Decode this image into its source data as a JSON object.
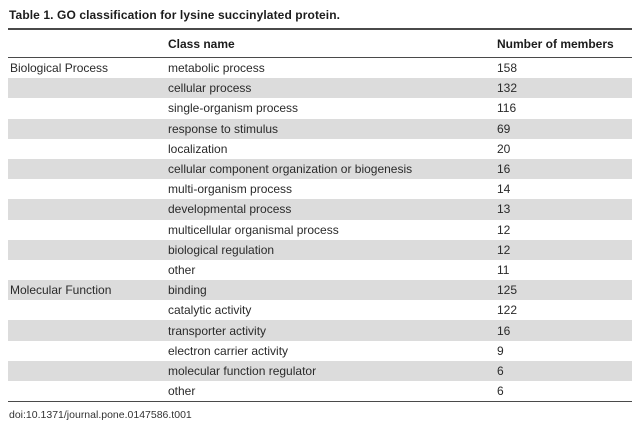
{
  "title": "Table 1. GO classification for lysine succinylated protein.",
  "doi": "doi:10.1371/journal.pone.0147586.t001",
  "colors": {
    "stripe": "#dcdcdc",
    "rule": "#4a4a4a",
    "background": "#ffffff",
    "text": "#212121"
  },
  "chart_data": {
    "type": "table",
    "title": "Table 1. GO classification for lysine succinylated protein.",
    "headers": [
      "",
      "Class name",
      "Number of members"
    ],
    "groups": [
      {
        "name": "Biological Process",
        "row_count": 11
      },
      {
        "name": "Molecular Function",
        "row_count": 6
      }
    ],
    "rows": [
      {
        "group": "Biological Process",
        "class_name": "metabolic process",
        "members": 158
      },
      {
        "group": "",
        "class_name": "cellular process",
        "members": 132
      },
      {
        "group": "",
        "class_name": "single-organism process",
        "members": 116
      },
      {
        "group": "",
        "class_name": "response to stimulus",
        "members": 69
      },
      {
        "group": "",
        "class_name": "localization",
        "members": 20
      },
      {
        "group": "",
        "class_name": "cellular component organization or biogenesis",
        "members": 16
      },
      {
        "group": "",
        "class_name": "multi-organism process",
        "members": 14
      },
      {
        "group": "",
        "class_name": "developmental process",
        "members": 13
      },
      {
        "group": "",
        "class_name": "multicellular organismal process",
        "members": 12
      },
      {
        "group": "",
        "class_name": "biological regulation",
        "members": 12
      },
      {
        "group": "",
        "class_name": "other",
        "members": 11
      },
      {
        "group": "Molecular Function",
        "class_name": "binding",
        "members": 125
      },
      {
        "group": "",
        "class_name": "catalytic activity",
        "members": 122
      },
      {
        "group": "",
        "class_name": "transporter activity",
        "members": 16
      },
      {
        "group": "",
        "class_name": "electron carrier activity",
        "members": 9
      },
      {
        "group": "",
        "class_name": "molecular function regulator",
        "members": 6
      },
      {
        "group": "",
        "class_name": "other",
        "members": 6
      }
    ]
  }
}
